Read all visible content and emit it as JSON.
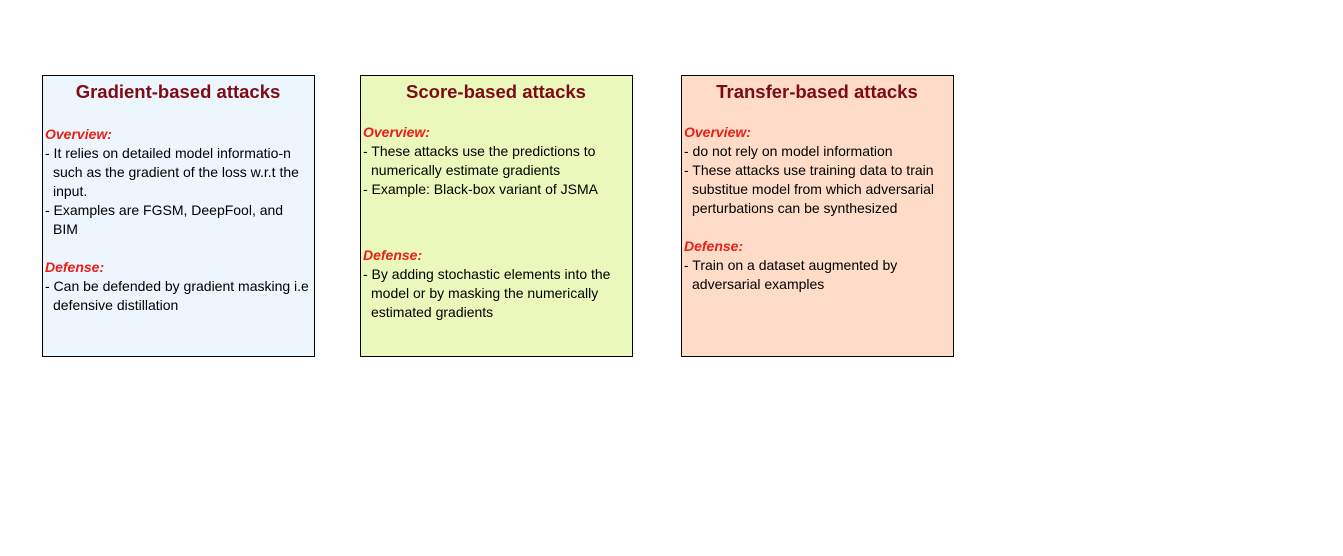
{
  "colors": {
    "title": "#7f0a14",
    "heading": "#e8201a",
    "border": "#000000"
  },
  "cards": [
    {
      "title": "Gradient-based attacks",
      "background": "#edf6fc",
      "overview_heading": "Overview:",
      "overview": [
        "- It relies on detailed model informatio-n such as the gradient of the loss w.r.t the input.",
        "- Examples are FGSM, DeepFool, and BIM"
      ],
      "defense_heading": "Defense:",
      "defense": [
        "- Can be defended by gradient masking i.e defensive distillation"
      ]
    },
    {
      "title": "Score-based attacks",
      "background": "#ebf8bb",
      "overview_heading": "Overview:",
      "overview": [
        "- These attacks use the predictions to numerically estimate gradients",
        "- Example: Black-box variant of JSMA"
      ],
      "defense_heading": "Defense:",
      "defense": [
        "- By adding stochastic elements into the model or by masking the numerically estimated gradients"
      ]
    },
    {
      "title": "Transfer-based attacks",
      "background": "#fedcc8",
      "overview_heading": "Overview:",
      "overview": [
        "- do not rely on model information",
        "- These attacks use training data to train substitue model from which adversarial perturbations can be synthesized"
      ],
      "defense_heading": "Defense:",
      "defense": [
        "- Train on a dataset augmented by adversarial examples"
      ]
    }
  ]
}
